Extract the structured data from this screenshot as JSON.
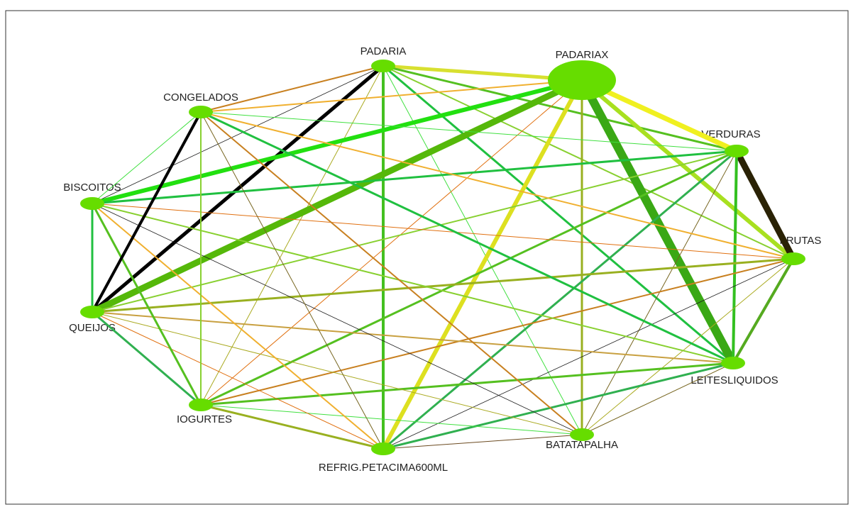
{
  "nodes": [
    {
      "label": "PADARIA"
    },
    {
      "label": "PADARIAX"
    },
    {
      "label": "VERDURAS"
    },
    {
      "label": "FRUTAS"
    },
    {
      "label": "LEITESLIQUIDOS"
    },
    {
      "label": "BATATAPALHA"
    },
    {
      "label": "REFRIG.PETACIMA600ML"
    },
    {
      "label": "IOGURTES"
    },
    {
      "label": "QUEIJOS"
    },
    {
      "label": "BISCOITOS"
    },
    {
      "label": "CONGELADOS"
    }
  ]
}
